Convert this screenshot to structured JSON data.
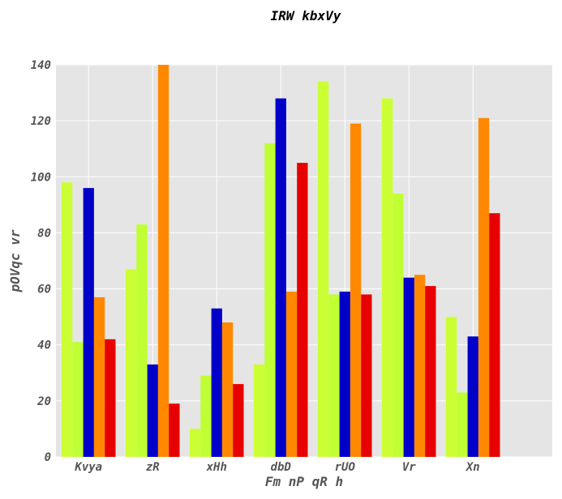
{
  "chart_data": {
    "type": "bar",
    "title": "IRW kbxVy",
    "xlabel": "Fm nP qR h",
    "ylabel": "pOVqc vr",
    "categories": [
      "Kvya",
      "zR",
      "xHh",
      "dbD",
      "rUO",
      "Vr",
      "Xn"
    ],
    "ylim": [
      0,
      140
    ],
    "yticks": [
      0,
      20,
      40,
      60,
      80,
      100,
      120,
      140
    ],
    "grid": true,
    "series": [
      {
        "color": "#ccff33",
        "values": [
          98,
          67,
          10,
          33,
          134,
          128,
          50
        ]
      },
      {
        "color": "#bfff33",
        "values": [
          41,
          83,
          29,
          112,
          58,
          94,
          23
        ]
      },
      {
        "color": "#0000c8",
        "values": [
          96,
          33,
          53,
          128,
          59,
          64,
          43
        ]
      },
      {
        "color": "#ff8800",
        "values": [
          57,
          140,
          48,
          59,
          119,
          65,
          121
        ]
      },
      {
        "color": "#e60000",
        "values": [
          42,
          19,
          26,
          105,
          58,
          61,
          87
        ]
      }
    ]
  }
}
